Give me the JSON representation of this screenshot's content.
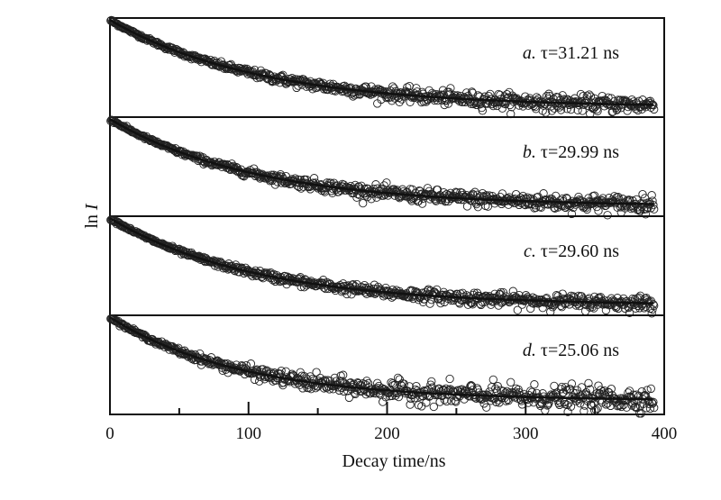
{
  "chart_data": {
    "type": "scatter",
    "xlabel": "Decay time/ns",
    "ylabel": "ln I",
    "xlim": [
      0,
      400
    ],
    "x_ticks": [
      0,
      100,
      200,
      300,
      400
    ],
    "x_tick_labels": [
      "0",
      "100",
      "200",
      "300",
      "400"
    ],
    "shared_x_axis": true,
    "y_tick_labels": false,
    "grid": false,
    "legend": "none",
    "panels": [
      {
        "letter": "a.",
        "tau_symbol": "τ",
        "tau_text": "=31.21 ns",
        "tau_ns": 31.21,
        "baseline_level": 0.1,
        "noise_amplitude": 0.06
      },
      {
        "letter": "b.",
        "tau_symbol": "τ",
        "tau_text": "=29.99 ns",
        "tau_ns": 29.99,
        "baseline_level": 0.1,
        "noise_amplitude": 0.06
      },
      {
        "letter": "c.",
        "tau_symbol": "τ",
        "tau_text": "=29.60 ns",
        "tau_ns": 29.6,
        "baseline_level": 0.1,
        "noise_amplitude": 0.05
      },
      {
        "letter": "d.",
        "tau_symbol": "τ",
        "tau_text": "=25.06 ns",
        "tau_ns": 25.06,
        "baseline_level": 0.14,
        "noise_amplitude": 0.09
      }
    ],
    "series": [
      {
        "marker": "open-circle",
        "kind": "measured decay data"
      },
      {
        "marker": "solid-line",
        "kind": "exponential fit"
      }
    ],
    "colors": {
      "axis": "#111111",
      "markers": "#222222",
      "fit": "#111111",
      "background": "#ffffff"
    }
  }
}
